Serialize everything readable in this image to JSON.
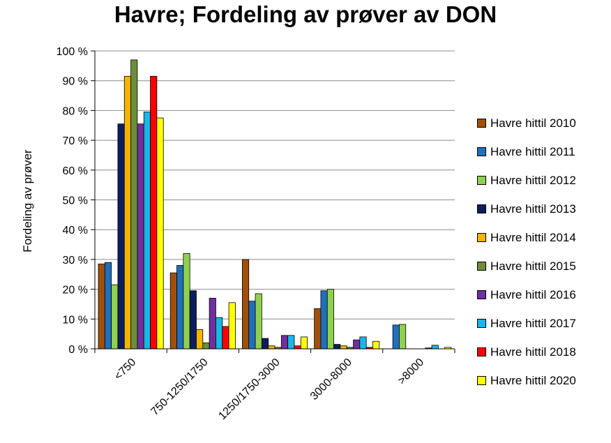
{
  "chart_data": {
    "type": "bar",
    "title": "Havre; Fordeling av prøver av DON",
    "xlabel": "",
    "ylabel": "Fordeling av prøver",
    "ylim": [
      0,
      100
    ],
    "yticks": [
      "0 %",
      "10 %",
      "20 %",
      "30 %",
      "40 %",
      "50 %",
      "60 %",
      "70 %",
      "80 %",
      "90 %",
      "100 %"
    ],
    "grid": true,
    "legend_position": "right",
    "categories": [
      "<750",
      "750-1250/1750",
      "1250/1750-3000",
      "3000-8000",
      ">8000"
    ],
    "series": [
      {
        "name": "Havre hittil 2010",
        "color": "#a0500a",
        "values": [
          28.5,
          25.5,
          30,
          13.5,
          0
        ]
      },
      {
        "name": "Havre hittil 2011",
        "color": "#1f6fbf",
        "values": [
          29,
          28,
          16,
          19.5,
          8
        ]
      },
      {
        "name": "Havre hittil 2012",
        "color": "#8fd14f",
        "values": [
          21.5,
          32,
          18.5,
          20,
          8.2
        ]
      },
      {
        "name": "Havre hittil 2013",
        "color": "#0c1f5c",
        "values": [
          75.5,
          19.5,
          3.5,
          1.5,
          0
        ]
      },
      {
        "name": "Havre hittil 2014",
        "color": "#f5b400",
        "values": [
          91.5,
          6.5,
          1,
          1,
          0
        ]
      },
      {
        "name": "Havre hittil 2015",
        "color": "#6b8e3a",
        "values": [
          97,
          2,
          0.5,
          0.5,
          0
        ]
      },
      {
        "name": "Havre hittil 2016",
        "color": "#7030a0",
        "values": [
          75.5,
          17,
          4.5,
          3,
          0.3
        ]
      },
      {
        "name": "Havre hittil 2017",
        "color": "#17b8e6",
        "values": [
          79.5,
          10.5,
          4.5,
          4,
          1.2
        ]
      },
      {
        "name": "Havre hittil 2018",
        "color": "#ff0000",
        "values": [
          91.5,
          7.5,
          1,
          0.5,
          0
        ]
      },
      {
        "name": "Havre hittil 2020",
        "color": "#ffff00",
        "values": [
          77.5,
          15.5,
          4,
          2.5,
          0.5
        ]
      }
    ]
  }
}
